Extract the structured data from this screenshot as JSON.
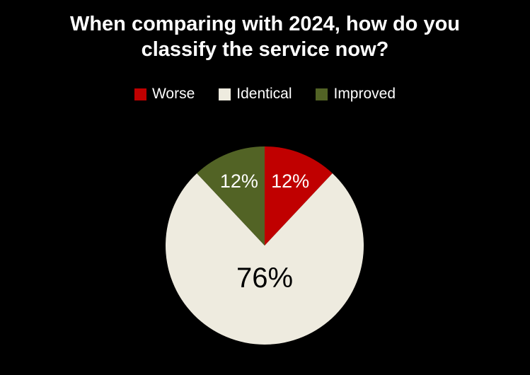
{
  "title": "When comparing with 2024, how do you classify the service now?",
  "colors": {
    "background": "#000000",
    "title_text": "#FFFFFF",
    "legend_text": "#FFFFFF",
    "worse": "#C00000",
    "identical": "#EEEBDF",
    "improved": "#526325"
  },
  "legend": {
    "items": [
      {
        "label": "Worse",
        "color": "#C00000"
      },
      {
        "label": "Identical",
        "color": "#EEEBDF"
      },
      {
        "label": "Improved",
        "color": "#526325"
      }
    ]
  },
  "chart_data": {
    "type": "pie",
    "title": "When comparing with 2024, how do you classify the service now?",
    "categories": [
      "Worse",
      "Identical",
      "Improved"
    ],
    "values": [
      12,
      76,
      12
    ],
    "unit": "percent",
    "start_angle_deg": 0,
    "direction": "clockwise",
    "legend_position": "top",
    "background": "#000000",
    "slices": [
      {
        "label": "Worse",
        "value": 12,
        "display": "12%",
        "color": "#C00000",
        "label_color": "#FFFFFF"
      },
      {
        "label": "Identical",
        "value": 76,
        "display": "76%",
        "color": "#EEEBDF",
        "label_color": "#000000"
      },
      {
        "label": "Improved",
        "value": 12,
        "display": "12%",
        "color": "#526325",
        "label_color": "#FFFFFF"
      }
    ]
  }
}
